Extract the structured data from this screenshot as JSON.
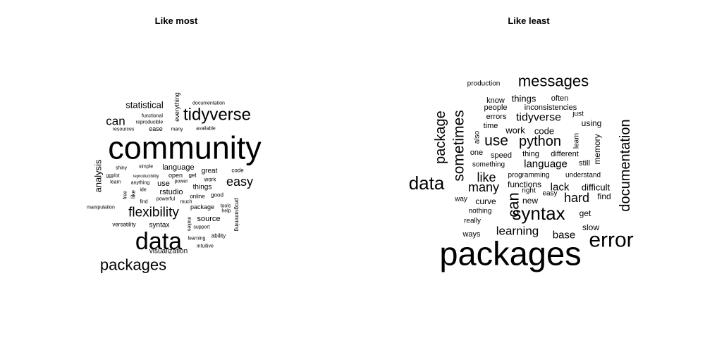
{
  "chart_data": [
    {
      "type": "wordcloud",
      "title": "Like most",
      "words": [
        {
          "text": "community",
          "weight": 45,
          "rot": 0
        },
        {
          "text": "data",
          "weight": 34,
          "rot": 0
        },
        {
          "text": "tidyverse",
          "weight": 24,
          "rot": 0
        },
        {
          "text": "packages",
          "weight": 22,
          "rot": 0
        },
        {
          "text": "flexibility",
          "weight": 19,
          "rot": 0
        },
        {
          "text": "easy",
          "weight": 18,
          "rot": 0
        },
        {
          "text": "can",
          "weight": 17,
          "rot": 0
        },
        {
          "text": "statistical",
          "weight": 13,
          "rot": 0
        },
        {
          "text": "analysis",
          "weight": 13,
          "rot": -90
        },
        {
          "text": "language",
          "weight": 11,
          "rot": 0
        },
        {
          "text": "rstudio",
          "weight": 11,
          "rot": 0
        },
        {
          "text": "source",
          "weight": 11,
          "rot": 0
        },
        {
          "text": "visualization",
          "weight": 10,
          "rot": 0
        },
        {
          "text": "use",
          "weight": 11,
          "rot": 0
        },
        {
          "text": "things",
          "weight": 10,
          "rot": 0
        },
        {
          "text": "syntax",
          "weight": 10,
          "rot": 0
        },
        {
          "text": "great",
          "weight": 10,
          "rot": 0
        },
        {
          "text": "everything",
          "weight": 9,
          "rot": -90
        },
        {
          "text": "programming",
          "weight": 8,
          "rot": 90
        },
        {
          "text": "package",
          "weight": 9,
          "rot": 0
        },
        {
          "text": "open",
          "weight": 9,
          "rot": 0
        },
        {
          "text": "ease",
          "weight": 9,
          "rot": 0
        },
        {
          "text": "versatility",
          "weight": 8,
          "rot": 0
        },
        {
          "text": "work",
          "weight": 8,
          "rot": 0
        },
        {
          "text": "code",
          "weight": 8,
          "rot": 0
        },
        {
          "text": "documentation",
          "weight": 7,
          "rot": 0
        },
        {
          "text": "functional",
          "weight": 7,
          "rot": 0
        },
        {
          "text": "reproducible",
          "weight": 7,
          "rot": 0
        },
        {
          "text": "resources",
          "weight": 7,
          "rot": 0
        },
        {
          "text": "many",
          "weight": 7,
          "rot": 0
        },
        {
          "text": "available",
          "weight": 7,
          "rot": 0
        },
        {
          "text": "shiny",
          "weight": 7,
          "rot": 0
        },
        {
          "text": "simple",
          "weight": 7,
          "rot": 0
        },
        {
          "text": "ggplot",
          "weight": 7,
          "rot": 0
        },
        {
          "text": "reproducibility",
          "weight": 6,
          "rot": 0
        },
        {
          "text": "get",
          "weight": 8,
          "rot": 0
        },
        {
          "text": "learn",
          "weight": 7,
          "rot": 0
        },
        {
          "text": "anything",
          "weight": 7,
          "rot": 0
        },
        {
          "text": "power",
          "weight": 7,
          "rot": 0
        },
        {
          "text": "free",
          "weight": 7,
          "rot": -90
        },
        {
          "text": "like",
          "weight": 8,
          "rot": -90
        },
        {
          "text": "ide",
          "weight": 7,
          "rot": 0
        },
        {
          "text": "online",
          "weight": 8,
          "rot": 0
        },
        {
          "text": "good",
          "weight": 8,
          "rot": 0
        },
        {
          "text": "powerful",
          "weight": 7,
          "rot": 0
        },
        {
          "text": "find",
          "weight": 7,
          "rot": 0
        },
        {
          "text": "much",
          "weight": 7,
          "rot": 0
        },
        {
          "text": "tools",
          "weight": 7,
          "rot": 0
        },
        {
          "text": "help",
          "weight": 7,
          "rot": 0
        },
        {
          "text": "manipulation",
          "weight": 7,
          "rot": 0
        },
        {
          "text": "makes",
          "weight": 7,
          "rot": 90
        },
        {
          "text": "support",
          "weight": 7,
          "rot": 0
        },
        {
          "text": "learning",
          "weight": 7,
          "rot": 0
        },
        {
          "text": "ability",
          "weight": 8,
          "rot": 0
        },
        {
          "text": "intuitive",
          "weight": 7,
          "rot": 0
        }
      ]
    },
    {
      "type": "wordcloud",
      "title": "Like least",
      "words": [
        {
          "text": "packages",
          "weight": 47,
          "rot": 0
        },
        {
          "text": "error",
          "weight": 30,
          "rot": 0
        },
        {
          "text": "syntax",
          "weight": 26,
          "rot": 0
        },
        {
          "text": "data",
          "weight": 26,
          "rot": 0
        },
        {
          "text": "messages",
          "weight": 22,
          "rot": 0
        },
        {
          "text": "can",
          "weight": 22,
          "rot": -90
        },
        {
          "text": "sometimes",
          "weight": 21,
          "rot": -90
        },
        {
          "text": "package",
          "weight": 20,
          "rot": -90
        },
        {
          "text": "documentation",
          "weight": 20,
          "rot": -90
        },
        {
          "text": "use",
          "weight": 21,
          "rot": 0
        },
        {
          "text": "python",
          "weight": 20,
          "rot": 0
        },
        {
          "text": "many",
          "weight": 18,
          "rot": 0
        },
        {
          "text": "like",
          "weight": 18,
          "rot": 0
        },
        {
          "text": "hard",
          "weight": 18,
          "rot": 0
        },
        {
          "text": "learning",
          "weight": 17,
          "rot": 0
        },
        {
          "text": "tidyverse",
          "weight": 16,
          "rot": 0
        },
        {
          "text": "language",
          "weight": 15,
          "rot": 0
        },
        {
          "text": "lack",
          "weight": 15,
          "rot": 0
        },
        {
          "text": "base",
          "weight": 15,
          "rot": 0
        },
        {
          "text": "work",
          "weight": 13,
          "rot": 0
        },
        {
          "text": "code",
          "weight": 13,
          "rot": 0
        },
        {
          "text": "things",
          "weight": 13,
          "rot": 0
        },
        {
          "text": "difficult",
          "weight": 13,
          "rot": 0
        },
        {
          "text": "curve",
          "weight": 12,
          "rot": 0
        },
        {
          "text": "slow",
          "weight": 12,
          "rot": 0
        },
        {
          "text": "get",
          "weight": 12,
          "rot": 0
        },
        {
          "text": "new",
          "weight": 12,
          "rot": 0
        },
        {
          "text": "find",
          "weight": 12,
          "rot": 0
        },
        {
          "text": "functions",
          "weight": 12,
          "rot": 0
        },
        {
          "text": "using",
          "weight": 12,
          "rot": 0
        },
        {
          "text": "memory",
          "weight": 12,
          "rot": -90
        },
        {
          "text": "often",
          "weight": 11,
          "rot": 0
        },
        {
          "text": "know",
          "weight": 11,
          "rot": 0
        },
        {
          "text": "time",
          "weight": 11,
          "rot": 0
        },
        {
          "text": "people",
          "weight": 11,
          "rot": 0
        },
        {
          "text": "inconsistencies",
          "weight": 11,
          "rot": 0
        },
        {
          "text": "errors",
          "weight": 11,
          "rot": 0
        },
        {
          "text": "just",
          "weight": 10,
          "rot": 0
        },
        {
          "text": "learn",
          "weight": 10,
          "rot": -90
        },
        {
          "text": "thing",
          "weight": 11,
          "rot": 0
        },
        {
          "text": "different",
          "weight": 11,
          "rot": 0
        },
        {
          "text": "still",
          "weight": 11,
          "rot": 0
        },
        {
          "text": "speed",
          "weight": 11,
          "rot": 0
        },
        {
          "text": "one",
          "weight": 11,
          "rot": 0
        },
        {
          "text": "also",
          "weight": 10,
          "rot": -90
        },
        {
          "text": "something",
          "weight": 10,
          "rot": 0
        },
        {
          "text": "programming",
          "weight": 10,
          "rot": 0
        },
        {
          "text": "understand",
          "weight": 10,
          "rot": 0
        },
        {
          "text": "right",
          "weight": 10,
          "rot": 0
        },
        {
          "text": "easy",
          "weight": 10,
          "rot": 0
        },
        {
          "text": "way",
          "weight": 10,
          "rot": 0
        },
        {
          "text": "nothing",
          "weight": 10,
          "rot": 0
        },
        {
          "text": "really",
          "weight": 10,
          "rot": 0
        },
        {
          "text": "ways",
          "weight": 11,
          "rot": 0
        },
        {
          "text": "production",
          "weight": 10,
          "rot": 0
        }
      ]
    }
  ]
}
